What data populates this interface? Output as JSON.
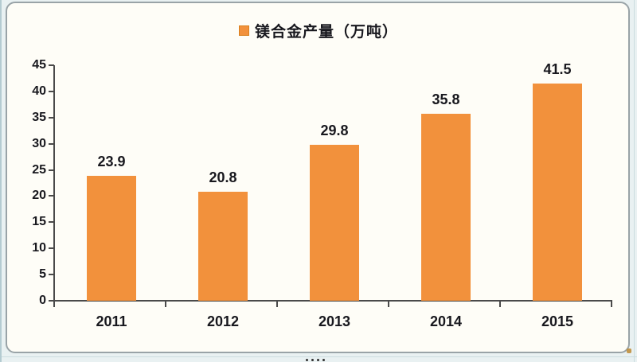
{
  "chart_data": {
    "type": "bar",
    "title": "",
    "legend": {
      "label": "镁合金产量（万吨）",
      "position": "top-center"
    },
    "categories": [
      "2011",
      "2012",
      "2013",
      "2014",
      "2015"
    ],
    "values": [
      23.9,
      20.8,
      29.8,
      35.8,
      41.5
    ],
    "value_labels": [
      "23.9",
      "20.8",
      "29.8",
      "35.8",
      "41.5"
    ],
    "xlabel": "",
    "ylabel": "",
    "ylim": [
      0,
      45
    ],
    "yticks": [
      0,
      5,
      10,
      15,
      20,
      25,
      30,
      35,
      40,
      45
    ],
    "grid": false,
    "bar_color": "#F2913C",
    "bar_edge_color": "#D9801F",
    "axis_color": "#4A4A4A",
    "label_color": "#18181E"
  },
  "canvas": {
    "sheet_background": "#E9F1F2",
    "card_background": "#FEFDF7",
    "card_border": "#99A3A7"
  }
}
